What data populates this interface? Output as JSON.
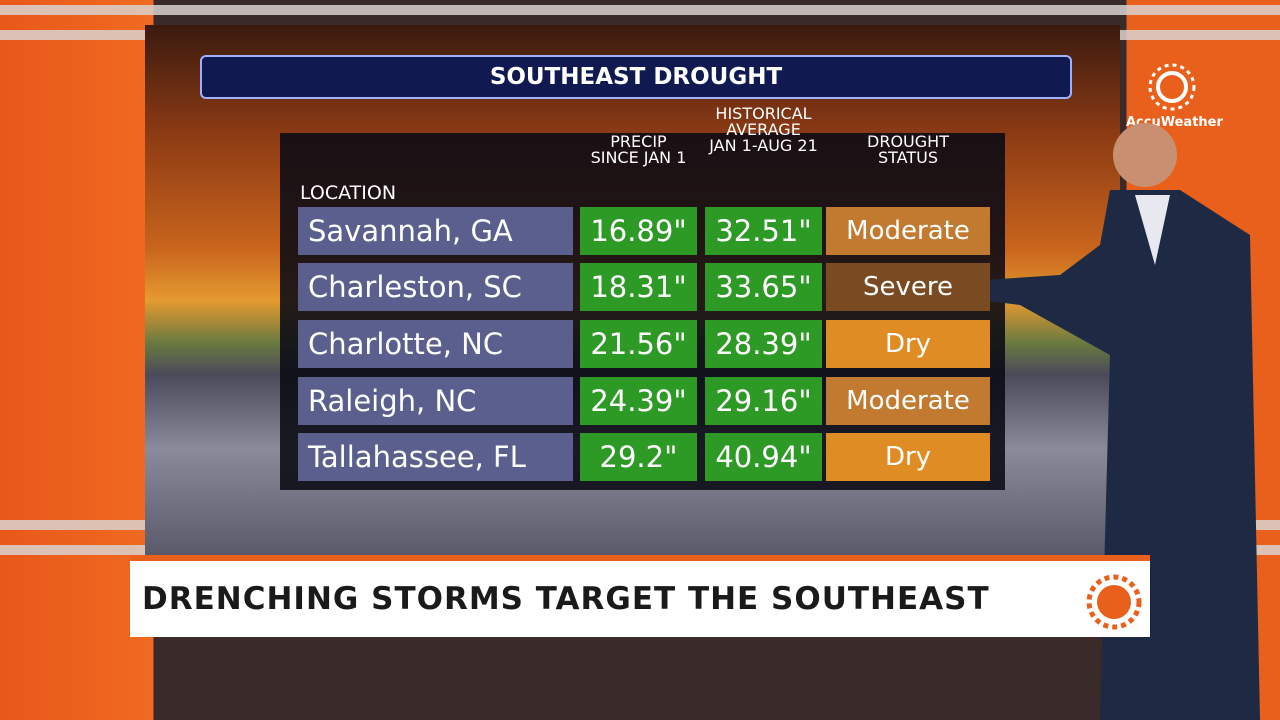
{
  "header": {
    "title": "SOUTHEAST DROUGHT"
  },
  "table": {
    "columns": [
      [
        "LOCATION"
      ],
      [
        "PRECIP",
        "SINCE JAN 1"
      ],
      [
        "HISTORICAL",
        "AVERAGE",
        "JAN 1-AUG 21"
      ],
      [
        "DROUGHT",
        "STATUS"
      ]
    ],
    "rows": [
      [
        "Savannah, GA",
        "16.89\"",
        "32.51\"",
        "Moderate"
      ],
      [
        "Charleston, SC",
        "18.31\"",
        "33.65\"",
        "Severe"
      ],
      [
        "Charlotte, NC",
        "21.56\"",
        "28.39\"",
        "Dry"
      ],
      [
        "Raleigh, NC",
        "24.39\"",
        "29.16\"",
        "Moderate"
      ],
      [
        "Tallahassee, FL",
        "29.2\"",
        "40.94\"",
        "Dry"
      ]
    ]
  },
  "banner": {
    "headline": "DRENCHING STORMS TARGET THE SOUTHEAST"
  },
  "logo": {
    "label": "AccuWeather"
  }
}
